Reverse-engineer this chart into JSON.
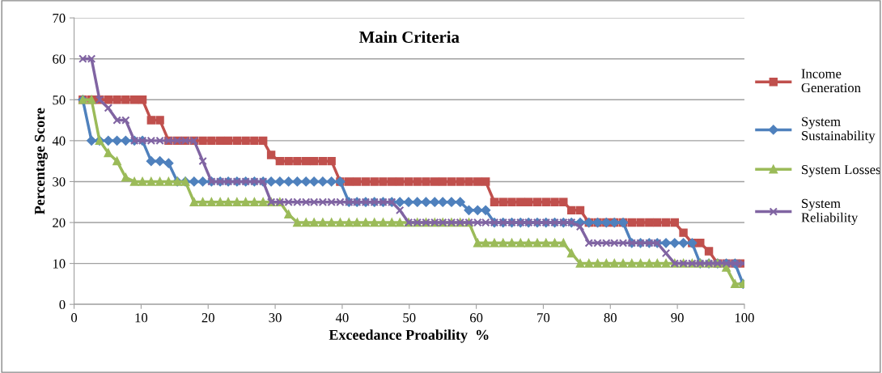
{
  "chart_data": {
    "type": "line",
    "title": "Main Criteria",
    "xlabel": "Exceedance Proability  %",
    "ylabel": "Percentage Score",
    "x": [
      1.3,
      2.6,
      3.8,
      5.1,
      6.4,
      7.7,
      9,
      10.2,
      11.5,
      12.8,
      14.1,
      15.4,
      16.6,
      17.9,
      19.2,
      20.5,
      21.8,
      23,
      24.3,
      25.6,
      26.9,
      28.2,
      29.4,
      30.7,
      32,
      33.3,
      34.6,
      35.8,
      37.1,
      38.4,
      39.7,
      41,
      42.2,
      43.5,
      44.8,
      46.1,
      47.4,
      48.6,
      49.9,
      51.2,
      52.5,
      53.8,
      55,
      56.3,
      57.6,
      58.9,
      60.2,
      61.4,
      62.7,
      64,
      65.3,
      66.6,
      67.8,
      69.1,
      70.4,
      71.7,
      73,
      74.2,
      75.5,
      76.8,
      78.1,
      79.4,
      80.6,
      81.9,
      83.2,
      84.5,
      85.8,
      87,
      88.3,
      89.6,
      90.9,
      92.2,
      93.4,
      94.7,
      96,
      97.3,
      98.6,
      99.8
    ],
    "series": [
      {
        "name": "Income\nGeneration",
        "color": "#c0504d",
        "marker": "square",
        "values": [
          50,
          50,
          50,
          50,
          50,
          50,
          50,
          50,
          45,
          45,
          40,
          40,
          40,
          40,
          40,
          40,
          40,
          40,
          40,
          40,
          40,
          40,
          36.5,
          35,
          35,
          35,
          35,
          35,
          35,
          35,
          30,
          30,
          30,
          30,
          30,
          30,
          30,
          30,
          30,
          30,
          30,
          30,
          30,
          30,
          30,
          30,
          30,
          30,
          25,
          25,
          25,
          25,
          25,
          25,
          25,
          25,
          25,
          23,
          23,
          20,
          20,
          20,
          20,
          20,
          20,
          20,
          20,
          20,
          20,
          20,
          17.5,
          15,
          15,
          13,
          10,
          10,
          10,
          10
        ]
      },
      {
        "name": "System\nSustainability",
        "color": "#4f81bd",
        "marker": "diamond",
        "values": [
          50,
          40,
          40,
          40,
          40,
          40,
          40,
          40,
          35,
          35,
          34.5,
          30,
          30,
          30,
          30,
          30,
          30,
          30,
          30,
          30,
          30,
          30,
          30,
          30,
          30,
          30,
          30,
          30,
          30,
          30,
          30,
          25,
          25,
          25,
          25,
          25,
          25,
          25,
          25,
          25,
          25,
          25,
          25,
          25,
          25,
          23,
          23,
          23,
          20,
          20,
          20,
          20,
          20,
          20,
          20,
          20,
          20,
          20,
          20,
          20,
          20,
          20,
          20,
          20,
          15,
          15,
          15,
          15,
          15,
          15,
          15,
          15,
          10,
          10,
          10,
          10,
          10,
          5
        ]
      },
      {
        "name": "System Losses",
        "color": "#9bbb59",
        "marker": "triangle",
        "values": [
          50,
          50,
          40,
          37,
          35,
          31,
          30,
          30,
          30,
          30,
          30,
          30,
          30,
          25,
          25,
          25,
          25,
          25,
          25,
          25,
          25,
          25,
          25,
          25,
          22,
          20,
          20,
          20,
          20,
          20,
          20,
          20,
          20,
          20,
          20,
          20,
          20,
          20,
          20,
          20,
          20,
          20,
          20,
          20,
          20,
          20,
          15,
          15,
          15,
          15,
          15,
          15,
          15,
          15,
          15,
          15,
          15,
          12.5,
          10,
          10,
          10,
          10,
          10,
          10,
          10,
          10,
          10,
          10,
          10,
          10,
          10,
          10,
          10,
          10,
          10,
          9,
          5,
          5
        ]
      },
      {
        "name": "System\nReliability",
        "color": "#8064a2",
        "marker": "cross",
        "values": [
          60,
          60,
          50,
          48,
          45,
          45,
          40,
          40,
          40,
          40,
          40,
          40,
          40,
          40,
          35,
          30,
          30,
          30,
          30,
          30,
          30,
          30,
          25,
          25,
          25,
          25,
          25,
          25,
          25,
          25,
          25,
          25,
          25,
          25,
          25,
          25,
          25,
          23,
          20,
          20,
          20,
          20,
          20,
          20,
          20,
          20,
          20,
          20,
          20,
          20,
          20,
          20,
          20,
          20,
          20,
          20,
          20,
          20,
          19,
          15,
          15,
          15,
          15,
          15,
          15,
          15,
          15,
          15,
          12.5,
          10,
          10,
          10,
          10,
          10,
          10,
          10,
          10,
          10
        ]
      }
    ],
    "xlim": [
      0,
      100
    ],
    "xticks": [
      0,
      10,
      20,
      30,
      40,
      50,
      60,
      70,
      80,
      90,
      100
    ],
    "ylim": [
      0,
      70
    ],
    "yticks": [
      0,
      10,
      20,
      30,
      40,
      50,
      60,
      70
    ],
    "grid": "y",
    "legend": "right",
    "line_style": "solid"
  }
}
